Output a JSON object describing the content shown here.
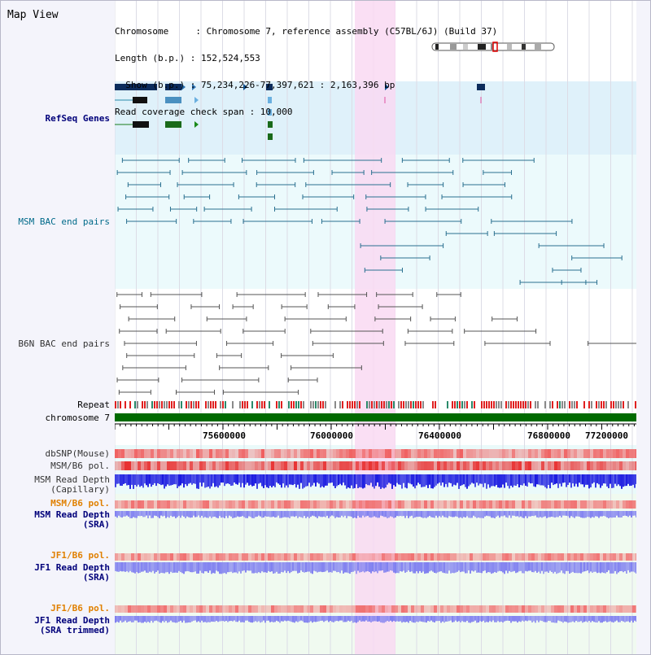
{
  "view": {
    "title": "Map View",
    "info_lines": [
      "Chromosome     : Chromosome 7, reference assembly (C57BL/6J) (Build 37)",
      "Length (b.p.) : 152,524,553",
      "  Show (b.p.) : 75,234,226-77,397,621 : 2,163,396 bp",
      "Read coverage check span : 10,000"
    ]
  },
  "tracks": {
    "refseq": "RefSeq Genes",
    "msm_bac": "MSM BAC end pairs",
    "b6n_bac": "B6N BAC end pairs",
    "repeat": "Repeat",
    "chromosome": "chromosome 7",
    "dbsnp": "dbSNP(Mouse)",
    "msm_b6_pol_1": "MSM/B6 pol.",
    "msm_read_depth_cap": "MSM Read Depth\n(Capillary)",
    "msm_b6_pol_2": "MSM/B6 pol.",
    "msm_read_depth_sra": "MSM Read Depth\n(SRA)",
    "jf1_b6_pol_1": "JF1/B6 pol.",
    "jf1_read_depth_sra": "JF1 Read Depth\n(SRA)",
    "jf1_b6_pol_2": "JF1/B6 pol.",
    "jf1_read_depth_trimmed": "JF1 Read Depth\n(SRA trimmed)"
  },
  "axis": {
    "ticks": [
      "75600000",
      "76000000",
      "76400000",
      "76800000",
      "77200000"
    ]
  },
  "colors": {
    "refseq_bg": "#dff1fa",
    "msm_bac_bg": "#ecfafc",
    "highlight": "#f9d9f2",
    "chromosome_bar": "#006a00",
    "msm_line": "#2a7090",
    "b6n_line": "#555555",
    "depth_capillary": "#1a1ae0",
    "depth_sra": "#8080f0",
    "pol": "#f05050"
  }
}
